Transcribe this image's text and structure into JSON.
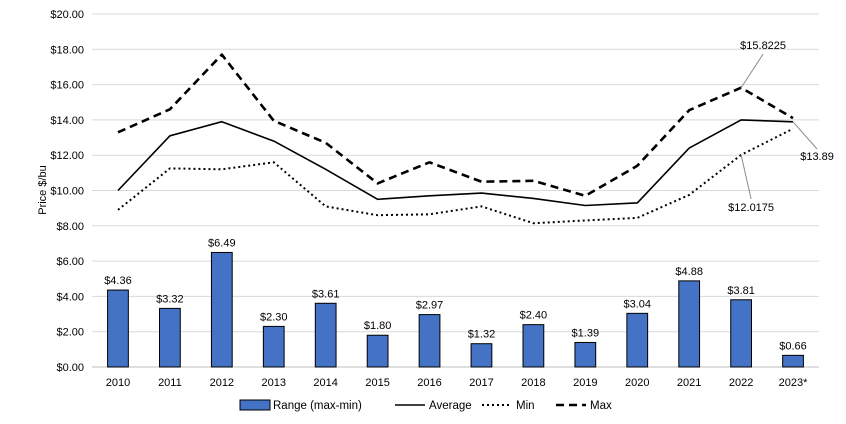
{
  "chart_data": {
    "type": "bar+line",
    "ylabel": "Price $/bu",
    "ylim": [
      0,
      20
    ],
    "yticks": [
      "$0.00",
      "$2.00",
      "$4.00",
      "$6.00",
      "$8.00",
      "$10.00",
      "$12.00",
      "$14.00",
      "$16.00",
      "$18.00",
      "$20.00"
    ],
    "categories": [
      "2010",
      "2011",
      "2012",
      "2013",
      "2014",
      "2015",
      "2016",
      "2017",
      "2018",
      "2019",
      "2020",
      "2021",
      "2022",
      "2023*"
    ],
    "bars": {
      "name": "Range (max-min)",
      "color": "#4472c4",
      "values": [
        4.36,
        3.32,
        6.49,
        2.3,
        3.61,
        1.8,
        2.97,
        1.32,
        2.4,
        1.39,
        3.04,
        4.88,
        3.81,
        0.66
      ],
      "labels": [
        "$4.36",
        "$3.32",
        "$6.49",
        "$2.30",
        "$3.61",
        "$1.80",
        "$2.97",
        "$1.32",
        "$2.40",
        "$1.39",
        "$3.04",
        "$4.88",
        "$3.81",
        "$0.66"
      ]
    },
    "series": [
      {
        "name": "Average",
        "style": "solid",
        "values": [
          10.0,
          13.1,
          13.9,
          12.8,
          11.2,
          9.5,
          9.7,
          9.85,
          9.55,
          9.15,
          9.3,
          12.4,
          14.0,
          13.89
        ]
      },
      {
        "name": "Min",
        "style": "dotted",
        "values": [
          8.9,
          11.25,
          11.2,
          11.6,
          9.1,
          8.6,
          8.65,
          9.1,
          8.15,
          8.3,
          8.45,
          9.75,
          12.0175,
          13.5
        ]
      },
      {
        "name": "Max",
        "style": "dashed",
        "values": [
          13.3,
          14.6,
          17.7,
          13.95,
          12.7,
          10.4,
          11.6,
          10.5,
          10.55,
          9.7,
          11.4,
          14.55,
          15.8225,
          14.1
        ]
      }
    ],
    "annotations": [
      {
        "text": "$15.8225",
        "series": "Max",
        "index": 12
      },
      {
        "text": "$13.89",
        "series": "Average",
        "index": 13
      },
      {
        "text": "$12.0175",
        "series": "Min",
        "index": 12
      }
    ],
    "legend": {
      "position": "bottom",
      "items": [
        "Range (max-min)",
        "Average",
        "Min",
        "Max"
      ]
    },
    "grid": true
  }
}
